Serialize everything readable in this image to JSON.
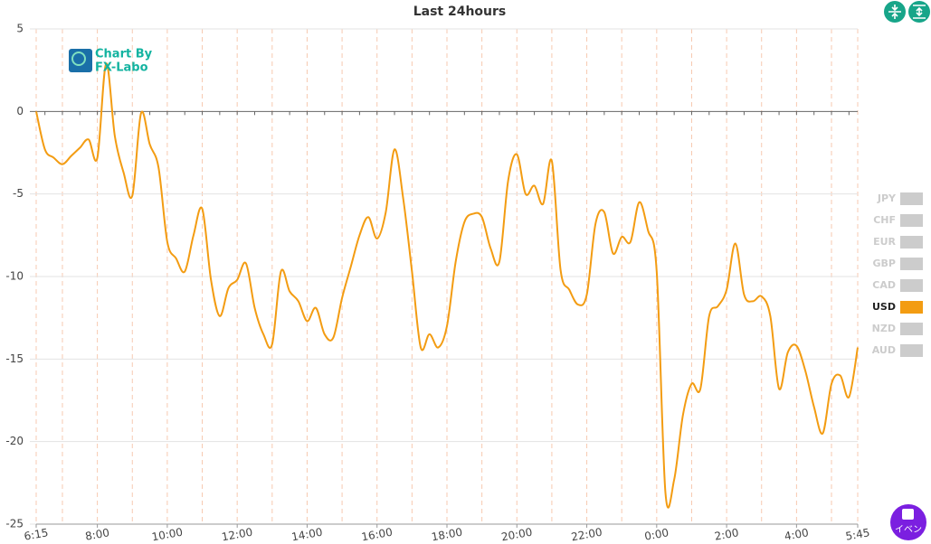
{
  "chart_data": {
    "type": "line",
    "title": "Last 24hours",
    "x": [
      "6:15",
      "6:30",
      "6:45",
      "7:00",
      "7:15",
      "7:30",
      "7:45",
      "8:00",
      "8:15",
      "8:30",
      "8:45",
      "9:00",
      "9:15",
      "9:30",
      "9:45",
      "10:00",
      "10:15",
      "10:30",
      "10:45",
      "11:00",
      "11:15",
      "11:30",
      "11:45",
      "12:00",
      "12:15",
      "12:30",
      "12:45",
      "13:00",
      "13:15",
      "13:30",
      "13:45",
      "14:00",
      "14:15",
      "14:30",
      "14:45",
      "15:00",
      "15:15",
      "15:30",
      "15:45",
      "16:00",
      "16:15",
      "16:30",
      "16:45",
      "17:00",
      "17:15",
      "17:30",
      "17:45",
      "18:00",
      "18:15",
      "18:30",
      "18:45",
      "19:00",
      "19:15",
      "19:30",
      "19:45",
      "20:00",
      "20:15",
      "20:30",
      "20:45",
      "21:00",
      "21:15",
      "21:30",
      "21:45",
      "22:00",
      "22:15",
      "22:30",
      "22:45",
      "23:00",
      "23:15",
      "23:30",
      "23:45",
      "0:00",
      "0:15",
      "0:30",
      "0:45",
      "1:00",
      "1:15",
      "1:30",
      "1:45",
      "2:00",
      "2:15",
      "2:30",
      "2:45",
      "3:00",
      "3:15",
      "3:30",
      "3:45",
      "4:00",
      "4:15",
      "4:30",
      "4:45",
      "5:00",
      "5:15",
      "5:30",
      "5:45"
    ],
    "series": [
      {
        "name": "USD",
        "color": "#f39c12",
        "values": [
          0,
          -2.3,
          -2.8,
          -3.2,
          -2.7,
          -2.2,
          -1.7,
          -2.8,
          2.9,
          -1.5,
          -3.7,
          -5.1,
          -0.1,
          -2.0,
          -3.4,
          -7.9,
          -8.9,
          -9.7,
          -7.5,
          -5.9,
          -10.2,
          -12.4,
          -10.7,
          -10.2,
          -9.2,
          -11.9,
          -13.5,
          -14.1,
          -9.7,
          -10.9,
          -11.5,
          -12.7,
          -11.9,
          -13.5,
          -13.7,
          -11.3,
          -9.4,
          -7.5,
          -6.4,
          -7.7,
          -6.1,
          -2.3,
          -5.3,
          -9.7,
          -14.3,
          -13.5,
          -14.3,
          -13.0,
          -9.1,
          -6.7,
          -6.2,
          -6.4,
          -8.3,
          -9.1,
          -4.2,
          -2.6,
          -5.0,
          -4.5,
          -5.6,
          -3.0,
          -9.6,
          -10.8,
          -11.7,
          -11.1,
          -6.8,
          -6.1,
          -8.6,
          -7.6,
          -7.9,
          -5.5,
          -7.2,
          -9.7,
          -23.1,
          -22.3,
          -18.4,
          -16.5,
          -16.8,
          -12.4,
          -11.8,
          -10.8,
          -8.0,
          -11.1,
          -11.5,
          -11.2,
          -12.4,
          -16.8,
          -14.6,
          -14.2,
          -15.7,
          -17.9,
          -19.5,
          -16.5,
          -16.0,
          -17.3,
          -14.3
        ]
      }
    ],
    "legend": [
      "JPY",
      "CHF",
      "EUR",
      "GBP",
      "CAD",
      "USD",
      "NZD",
      "AUD"
    ],
    "inactive_color": "#cccccc",
    "xticks": [
      "6:15",
      "8:00",
      "10:00",
      "12:00",
      "14:00",
      "16:00",
      "18:00",
      "20:00",
      "22:00",
      "0:00",
      "2:00",
      "4:00",
      "5:45"
    ],
    "ylim": [
      -25,
      5
    ],
    "yticks": [
      5,
      0,
      -5,
      -10,
      -15,
      -20,
      -25
    ],
    "grid": true
  },
  "logo": [
    "Chart By",
    "FX-Labo"
  ],
  "event_button": "イベン"
}
